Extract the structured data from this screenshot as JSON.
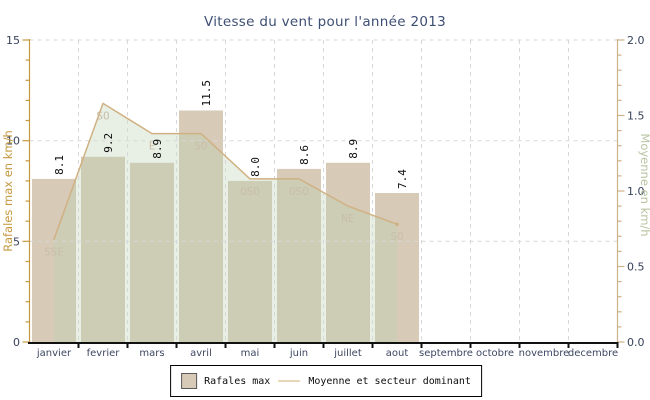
{
  "title": "Vitesse du vent pour l'année 2013",
  "legend": {
    "bar_label": "Rafales max",
    "line_label": "Moyenne et secteur dominant"
  },
  "chart_data": {
    "type": "bar",
    "categories": [
      "janvier",
      "fevrier",
      "mars",
      "avril",
      "mai",
      "juin",
      "juillet",
      "aout",
      "septembre",
      "octobre",
      "novembre",
      "decembre"
    ],
    "series": [
      {
        "name": "Rafales max",
        "type": "bar",
        "axis": "left",
        "values": [
          8.1,
          9.2,
          8.9,
          11.5,
          8.0,
          8.6,
          8.9,
          7.4,
          null,
          null,
          null,
          null
        ]
      },
      {
        "name": "Moyenne et secteur dominant",
        "type": "line-area",
        "axis": "right",
        "values": [
          0.68,
          1.58,
          1.38,
          1.38,
          1.08,
          1.08,
          0.9,
          0.78,
          null,
          null,
          null,
          null
        ],
        "sectors": [
          "SSE",
          "SO",
          "E",
          "SO",
          "OSO",
          "OSO",
          "NE",
          "SO",
          null,
          null,
          null,
          null
        ]
      }
    ],
    "left_axis": {
      "title": "Rafales max en km/h",
      "min": 0,
      "max": 15,
      "major_tick_step": 5,
      "minor_tick_step": 1,
      "tick_labels": [
        "0",
        "5",
        "10",
        "15"
      ]
    },
    "right_axis": {
      "title": "Moyenne en km/h",
      "min": 0,
      "max": 2,
      "major_tick_step": 0.5,
      "minor_tick_step": 0.1,
      "tick_labels": [
        "0.0",
        "0.5",
        "1.0",
        "1.5",
        "2.0"
      ]
    },
    "grid": true,
    "legend_position": "bottom-center"
  },
  "colors": {
    "bar_fill": "#d7cab6",
    "area_fill_rgba": "rgba(186,209,180,0.33)",
    "line": "#d0b183",
    "left_axis": "#c6993f",
    "right_axis": "#cdb289",
    "right_axis_title": "#bac4a3",
    "bottom_axis": "#111111",
    "grid": "#d8d8d8",
    "sector_label": "#c8bfa9",
    "title_text": "#3e4f74",
    "legend_dash": "#e7d7b6"
  }
}
